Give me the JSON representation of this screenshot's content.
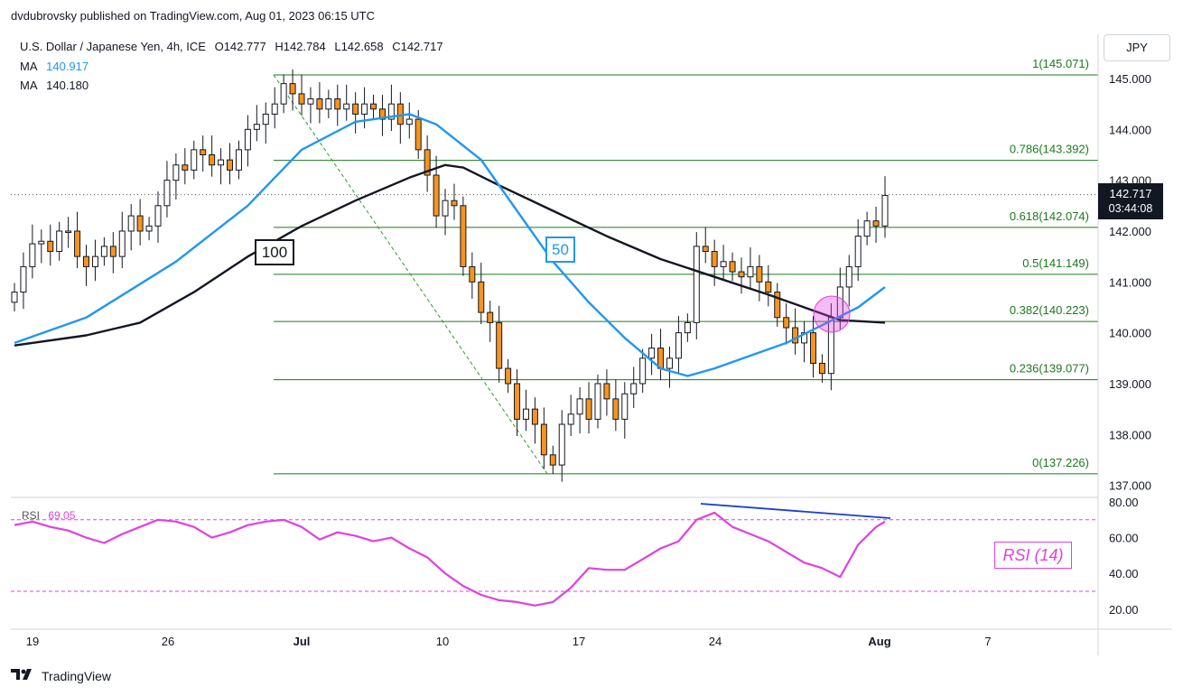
{
  "publisher": "dvdubrovsky published on TradingView.com, Aug 01, 2023 06:15 UTC",
  "legend": {
    "symbol": "U.S. Dollar / Japanese Yen, 4h, ICE",
    "ohlc": {
      "open": "O142.777",
      "high": "H142.784",
      "low": "L142.658",
      "close": "C142.717"
    },
    "ma_fast": {
      "label": "MA",
      "value": "140.917",
      "color": "#2196f3"
    },
    "ma_slow": {
      "label": "MA",
      "value": "140.180",
      "color": "#131722"
    }
  },
  "currency_button": "JPY",
  "last_price": {
    "price": "142.717",
    "countdown": "03:44:08"
  },
  "ma_labels": {
    "slow": "100",
    "fast": "50"
  },
  "rsi": {
    "label": "RSI",
    "value": "69.05",
    "annotation": "RSI (14)",
    "color": "#e040e0"
  },
  "footer": {
    "brand": "TradingView"
  },
  "colors": {
    "up": "#ffffff",
    "down": "#f7941d",
    "wick": "#131722",
    "fib": "#1b7a1b",
    "ma50": "#2196f3",
    "ma100": "#131722",
    "rsi": "#e040e0",
    "divergence": "#1a3ad6"
  },
  "chart_data": [
    {
      "type": "line",
      "title": "U.S. Dollar / Japanese Yen, 4h, ICE",
      "x_ticks": [
        "19",
        "26",
        "Jul",
        "10",
        "17",
        "24",
        "Aug",
        "7"
      ],
      "y_ticks": [
        "137.000",
        "138.000",
        "139.000",
        "140.000",
        "141.000",
        "142.000",
        "143.000",
        "144.000",
        "145.000"
      ],
      "ylim": [
        136.7,
        145.5
      ],
      "series": [
        {
          "name": "USD/JPY (approx. 4h closes)",
          "points": [
            [
              0,
              140.8
            ],
            [
              1,
              141.3
            ],
            [
              2,
              141.75
            ],
            [
              3,
              141.8
            ],
            [
              4,
              141.6
            ],
            [
              5,
              142.0
            ],
            [
              6,
              142.0
            ],
            [
              7,
              141.5
            ],
            [
              8,
              141.3
            ],
            [
              9,
              141.5
            ],
            [
              10,
              141.7
            ],
            [
              11,
              141.5
            ],
            [
              12,
              142.0
            ],
            [
              13,
              142.3
            ],
            [
              14,
              142.0
            ],
            [
              15,
              142.1
            ],
            [
              16,
              142.5
            ],
            [
              17,
              143.0
            ],
            [
              18,
              143.3
            ],
            [
              19,
              143.2
            ],
            [
              20,
              143.6
            ],
            [
              21,
              143.5
            ],
            [
              22,
              143.3
            ],
            [
              23,
              143.4
            ],
            [
              24,
              143.2
            ],
            [
              25,
              143.6
            ],
            [
              26,
              144.0
            ],
            [
              27,
              144.1
            ],
            [
              28,
              144.3
            ],
            [
              29,
              144.5
            ],
            [
              30,
              144.9
            ],
            [
              31,
              144.7
            ],
            [
              32,
              144.5
            ],
            [
              33,
              144.6
            ],
            [
              34,
              144.4
            ],
            [
              35,
              144.6
            ],
            [
              36,
              144.4
            ],
            [
              37,
              144.5
            ],
            [
              38,
              144.3
            ],
            [
              39,
              144.5
            ],
            [
              40,
              144.4
            ],
            [
              41,
              144.2
            ],
            [
              42,
              144.5
            ],
            [
              43,
              144.1
            ],
            [
              44,
              144.2
            ],
            [
              45,
              143.6
            ],
            [
              46,
              143.1
            ],
            [
              47,
              142.3
            ],
            [
              48,
              142.6
            ],
            [
              49,
              142.5
            ],
            [
              50,
              141.3
            ],
            [
              51,
              141.0
            ],
            [
              52,
              140.4
            ],
            [
              53,
              140.2
            ],
            [
              54,
              139.3
            ],
            [
              55,
              139.0
            ],
            [
              56,
              138.3
            ],
            [
              57,
              138.5
            ],
            [
              58,
              138.2
            ],
            [
              59,
              137.6
            ],
            [
              60,
              137.4
            ],
            [
              61,
              138.2
            ],
            [
              62,
              138.4
            ],
            [
              63,
              138.7
            ],
            [
              64,
              138.3
            ],
            [
              65,
              139.0
            ],
            [
              66,
              138.7
            ],
            [
              67,
              138.3
            ],
            [
              68,
              138.8
            ],
            [
              69,
              139.0
            ],
            [
              70,
              139.5
            ],
            [
              71,
              139.7
            ],
            [
              72,
              139.3
            ],
            [
              73,
              139.5
            ],
            [
              74,
              140.0
            ],
            [
              75,
              140.2
            ],
            [
              76,
              141.7
            ],
            [
              77,
              141.6
            ],
            [
              78,
              141.3
            ],
            [
              79,
              141.4
            ],
            [
              80,
              141.2
            ],
            [
              81,
              141.1
            ],
            [
              82,
              141.3
            ],
            [
              83,
              141.0
            ],
            [
              84,
              140.8
            ],
            [
              85,
              140.3
            ],
            [
              86,
              140.1
            ],
            [
              87,
              139.8
            ],
            [
              88,
              140.0
            ],
            [
              89,
              139.4
            ],
            [
              90,
              139.2
            ],
            [
              91,
              140.3
            ],
            [
              92,
              140.9
            ],
            [
              93,
              141.3
            ],
            [
              94,
              141.9
            ],
            [
              95,
              142.2
            ],
            [
              96,
              142.1
            ],
            [
              97,
              142.7
            ]
          ]
        },
        {
          "name": "MA (50)",
          "points": [
            [
              0,
              139.8
            ],
            [
              8,
              140.3
            ],
            [
              18,
              141.4
            ],
            [
              26,
              142.5
            ],
            [
              32,
              143.6
            ],
            [
              38,
              144.15
            ],
            [
              44,
              144.3
            ],
            [
              47,
              144.1
            ],
            [
              52,
              143.4
            ],
            [
              56,
              142.4
            ],
            [
              60,
              141.4
            ],
            [
              64,
              140.6
            ],
            [
              68,
              139.9
            ],
            [
              72,
              139.3
            ],
            [
              75,
              139.15
            ],
            [
              78,
              139.3
            ],
            [
              82,
              139.55
            ],
            [
              86,
              139.8
            ],
            [
              90,
              140.15
            ],
            [
              94,
              140.5
            ],
            [
              97,
              140.9
            ]
          ]
        },
        {
          "name": "MA (100)",
          "points": [
            [
              0,
              139.75
            ],
            [
              8,
              139.95
            ],
            [
              14,
              140.2
            ],
            [
              20,
              140.8
            ],
            [
              26,
              141.5
            ],
            [
              32,
              142.1
            ],
            [
              38,
              142.6
            ],
            [
              44,
              143.05
            ],
            [
              48,
              143.3
            ],
            [
              50,
              143.25
            ],
            [
              54,
              142.9
            ],
            [
              60,
              142.4
            ],
            [
              66,
              141.9
            ],
            [
              72,
              141.45
            ],
            [
              78,
              141.1
            ],
            [
              84,
              140.75
            ],
            [
              88,
              140.5
            ],
            [
              92,
              140.25
            ],
            [
              97,
              140.2
            ]
          ]
        }
      ],
      "fibonacci": [
        {
          "label": "1(145.071)",
          "value": 145.071
        },
        {
          "label": "0.786(143.392)",
          "value": 143.392
        },
        {
          "label": "0.618(142.074)",
          "value": 142.074
        },
        {
          "label": "0.5(141.149)",
          "value": 141.149
        },
        {
          "label": "0.382(140.223)",
          "value": 140.223
        },
        {
          "label": "0.236(139.077)",
          "value": 139.077
        },
        {
          "label": "0(137.226)",
          "value": 137.226
        }
      ],
      "grid": false
    },
    {
      "type": "line",
      "title": "RSI (14)",
      "y_ticks": [
        "20.00",
        "40.00",
        "60.00",
        "80.00"
      ],
      "ylim": [
        15,
        82
      ],
      "reference_levels": [
        30,
        70
      ],
      "series": [
        {
          "name": "RSI",
          "points": [
            [
              0,
              67
            ],
            [
              2,
              69
            ],
            [
              4,
              66
            ],
            [
              6,
              64
            ],
            [
              8,
              60
            ],
            [
              10,
              57
            ],
            [
              12,
              62
            ],
            [
              14,
              66
            ],
            [
              16,
              70
            ],
            [
              18,
              69
            ],
            [
              20,
              66
            ],
            [
              22,
              60
            ],
            [
              24,
              63
            ],
            [
              26,
              67
            ],
            [
              28,
              69
            ],
            [
              30,
              70
            ],
            [
              32,
              66
            ],
            [
              34,
              59
            ],
            [
              36,
              63
            ],
            [
              38,
              61
            ],
            [
              40,
              58
            ],
            [
              42,
              60
            ],
            [
              44,
              54
            ],
            [
              46,
              49
            ],
            [
              48,
              40
            ],
            [
              50,
              33
            ],
            [
              52,
              28
            ],
            [
              54,
              25
            ],
            [
              56,
              24
            ],
            [
              58,
              22
            ],
            [
              60,
              24
            ],
            [
              62,
              32
            ],
            [
              64,
              43
            ],
            [
              66,
              42
            ],
            [
              68,
              42
            ],
            [
              70,
              48
            ],
            [
              72,
              54
            ],
            [
              74,
              58
            ],
            [
              76,
              70
            ],
            [
              78,
              74
            ],
            [
              80,
              66
            ],
            [
              82,
              62
            ],
            [
              84,
              58
            ],
            [
              86,
              52
            ],
            [
              88,
              46
            ],
            [
              90,
              43
            ],
            [
              92,
              38
            ],
            [
              94,
              56
            ],
            [
              96,
              66
            ],
            [
              97,
              69
            ]
          ]
        }
      ]
    }
  ]
}
